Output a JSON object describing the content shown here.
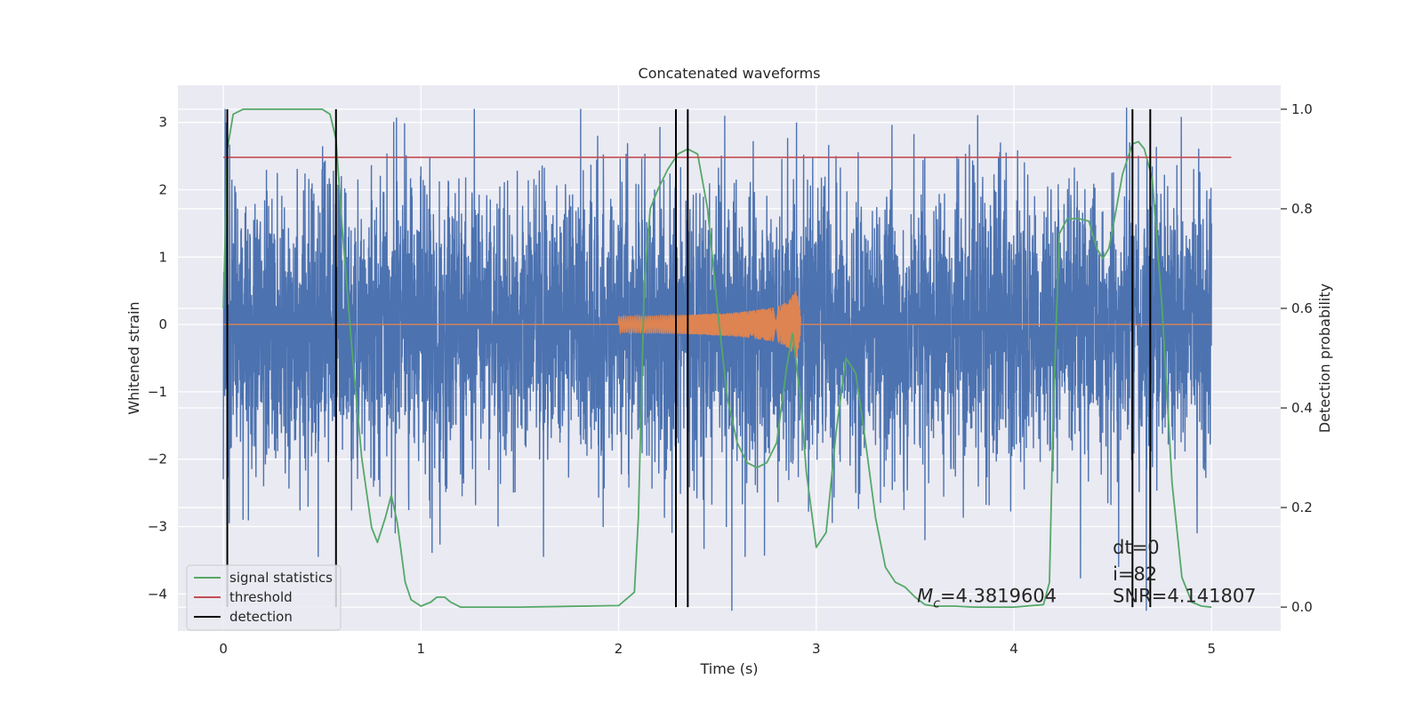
{
  "chart_data": {
    "type": "line",
    "title": "Concatenated waveforms",
    "xlabel": "Time (s)",
    "ylabel": "Whitened strain",
    "y2label": "Detection probability",
    "xlim": [
      -0.23,
      5.35
    ],
    "ylim": [
      -4.55,
      3.55
    ],
    "y2lim": [
      -0.048,
      1.048
    ],
    "x_ticks": [
      0,
      1,
      2,
      3,
      4,
      5
    ],
    "y_ticks": [
      -4,
      -3,
      -2,
      -1,
      0,
      1,
      2,
      3
    ],
    "y2_ticks": [
      0.0,
      0.2,
      0.4,
      0.6,
      0.8,
      1.0
    ],
    "x_tick_labels": [
      "0",
      "1",
      "2",
      "3",
      "4",
      "5"
    ],
    "y_tick_labels": [
      "−4",
      "−3",
      "−2",
      "−1",
      "0",
      "1",
      "2",
      "3"
    ],
    "y2_tick_labels": [
      "0.0",
      "0.2",
      "0.4",
      "0.6",
      "0.8",
      "1.0"
    ],
    "grid": true,
    "legend_placement": "lower-left",
    "series": [
      {
        "name": "",
        "kind": "noise",
        "color": "#4c72b0",
        "axis": "left",
        "x_range": [
          0.0,
          5.0
        ],
        "amplitude_range": [
          -4.25,
          3.2
        ],
        "peaks": [
          [
            0.0,
            -2.3
          ],
          [
            0.03,
            -2.95
          ],
          [
            0.1,
            -2.9
          ],
          [
            0.48,
            -3.45
          ],
          [
            0.87,
            -3.1
          ],
          [
            1.27,
            3.2
          ],
          [
            1.39,
            -3.0
          ],
          [
            1.62,
            -3.45
          ],
          [
            2.64,
            -3.45
          ],
          [
            3.55,
            -3.2
          ],
          [
            4.57,
            3.22
          ],
          [
            4.67,
            -4.25
          ],
          [
            4.53,
            -3.6
          ],
          [
            2.9,
            3.0
          ]
        ]
      },
      {
        "name": "",
        "kind": "chirp",
        "color": "#dd8452",
        "axis": "left",
        "x": [
          0.0,
          2.0,
          2.2,
          2.4,
          2.6,
          2.8,
          2.86,
          2.9,
          2.93,
          5.0
        ],
        "envelope": [
          0.0,
          0.12,
          0.13,
          0.15,
          0.18,
          0.26,
          0.35,
          0.52,
          0.0,
          0.0
        ]
      },
      {
        "name": "signal statistics",
        "color": "#55a868",
        "axis": "right",
        "x": [
          0.0,
          0.02,
          0.05,
          0.1,
          0.2,
          0.3,
          0.4,
          0.5,
          0.54,
          0.57,
          0.6,
          0.65,
          0.7,
          0.75,
          0.78,
          0.82,
          0.85,
          0.88,
          0.92,
          0.95,
          1.0,
          1.05,
          1.08,
          1.12,
          1.15,
          1.2,
          1.5,
          2.0,
          2.08,
          2.1,
          2.13,
          2.16,
          2.2,
          2.25,
          2.3,
          2.35,
          2.4,
          2.45,
          2.5,
          2.55,
          2.6,
          2.65,
          2.7,
          2.75,
          2.8,
          2.85,
          2.88,
          2.92,
          2.95,
          3.0,
          3.05,
          3.1,
          3.15,
          3.2,
          3.25,
          3.3,
          3.35,
          3.4,
          3.45,
          3.5,
          3.55,
          3.6,
          3.7,
          3.8,
          4.0,
          4.15,
          4.18,
          4.2,
          4.23,
          4.27,
          4.33,
          4.38,
          4.42,
          4.45,
          4.48,
          4.5,
          4.55,
          4.6,
          4.63,
          4.66,
          4.7,
          4.75,
          4.8,
          4.85,
          4.9,
          4.95,
          5.0
        ],
        "values": [
          0.6,
          0.92,
          0.99,
          1.0,
          1.0,
          1.0,
          1.0,
          1.0,
          0.99,
          0.94,
          0.77,
          0.52,
          0.3,
          0.16,
          0.13,
          0.18,
          0.225,
          0.17,
          0.05,
          0.015,
          0.002,
          0.01,
          0.02,
          0.02,
          0.01,
          0.0,
          0.0,
          0.003,
          0.03,
          0.18,
          0.65,
          0.8,
          0.84,
          0.88,
          0.91,
          0.92,
          0.91,
          0.8,
          0.6,
          0.42,
          0.33,
          0.29,
          0.28,
          0.29,
          0.33,
          0.48,
          0.55,
          0.42,
          0.27,
          0.12,
          0.15,
          0.35,
          0.5,
          0.47,
          0.33,
          0.18,
          0.08,
          0.05,
          0.04,
          0.02,
          0.005,
          0.002,
          0.002,
          0.0,
          0.0,
          0.005,
          0.05,
          0.4,
          0.75,
          0.78,
          0.78,
          0.775,
          0.72,
          0.7,
          0.72,
          0.76,
          0.87,
          0.93,
          0.935,
          0.92,
          0.86,
          0.6,
          0.25,
          0.06,
          0.01,
          0.002,
          0.0
        ]
      },
      {
        "name": "threshold",
        "color": "#c44e52",
        "axis": "left",
        "x": [
          0.0,
          5.1
        ],
        "values": [
          2.48,
          2.48
        ]
      },
      {
        "name": "detection",
        "color": "#000000",
        "axis": "right",
        "x": [
          0.02,
          0.57,
          2.29,
          2.35,
          4.6,
          4.69
        ],
        "y_range": [
          0.0,
          1.0
        ]
      }
    ],
    "annotations": [
      {
        "text_prefix": "M",
        "subscript": "c",
        "text": "=4.3819604",
        "x": 3.51,
        "y": -4.12
      },
      {
        "text": "dt=0",
        "x": 4.5,
        "y": -3.4
      },
      {
        "text": "i=82",
        "x": 4.5,
        "y": -3.8
      },
      {
        "text": "SNR=4.141807",
        "x": 4.5,
        "y": -4.12
      }
    ]
  }
}
